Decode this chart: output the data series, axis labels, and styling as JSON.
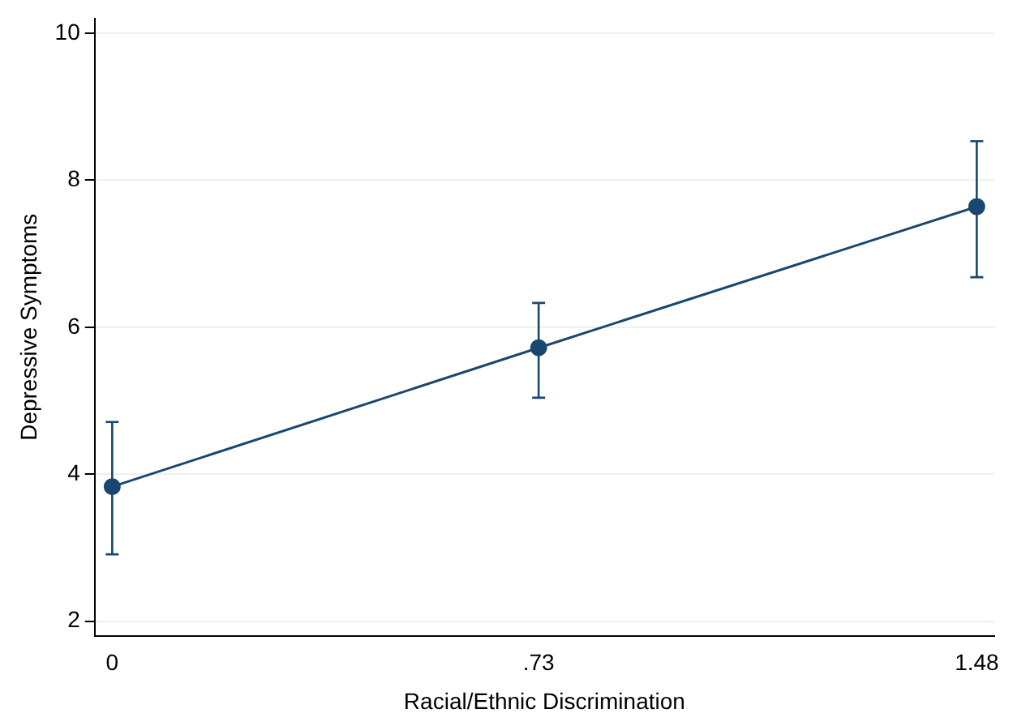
{
  "chart_data": {
    "type": "line",
    "xlabel": "Racial/Ethnic Discrimination",
    "ylabel": "Depressive Symptoms",
    "x": [
      0,
      0.73,
      1.48
    ],
    "series": [
      {
        "color": "#1a476f",
        "values": [
          3.83,
          5.72,
          7.64
        ],
        "errors": [
          [
            2.91,
            4.71
          ],
          [
            5.04,
            6.33
          ],
          [
            6.68,
            8.53
          ]
        ]
      }
    ],
    "xlim": [
      -0.03,
      1.51
    ],
    "xticks": [
      0,
      {
        "value": 0.73,
        "label": ".73"
      },
      1.48
    ],
    "ylim": [
      1.8,
      10.2
    ],
    "yticks": [
      2,
      4,
      6,
      8,
      10
    ],
    "grid": "y",
    "legend": false,
    "marker": "circle",
    "line_style": "solid"
  }
}
